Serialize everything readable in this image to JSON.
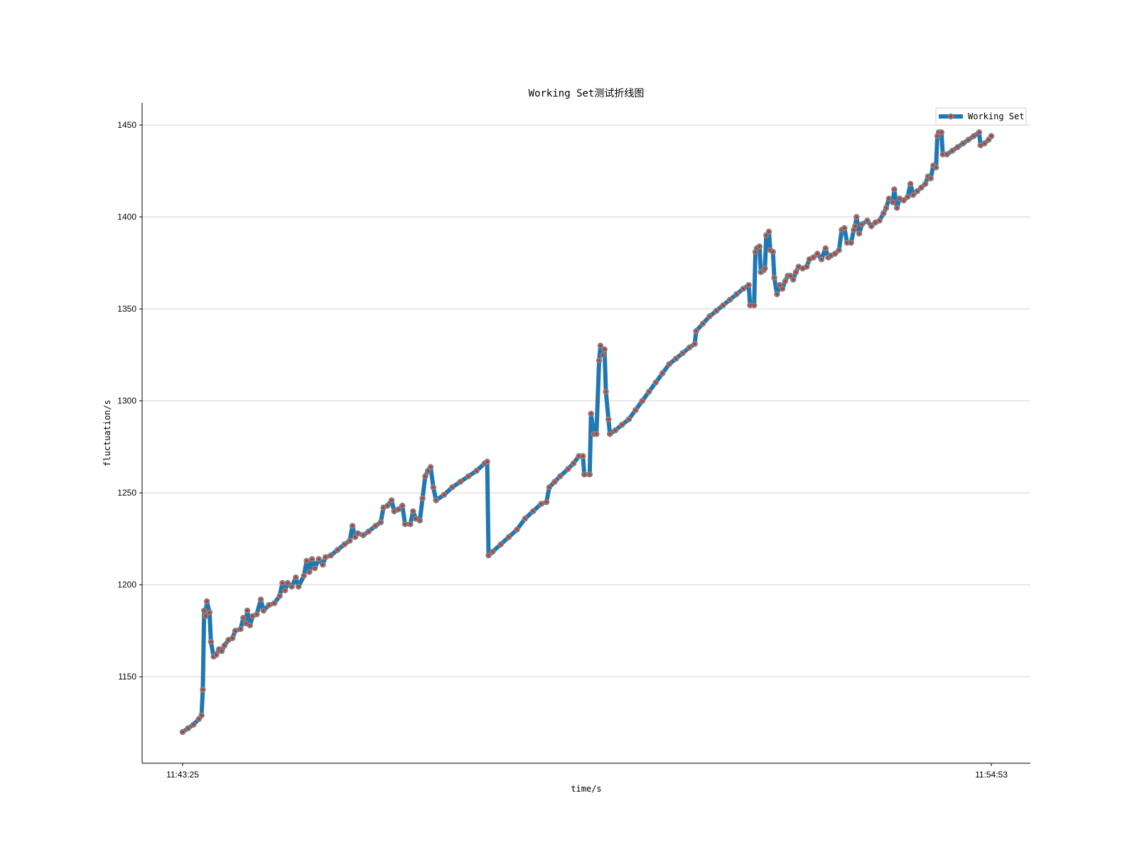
{
  "chart_data": {
    "type": "line",
    "title": "Working Set测试折线图",
    "xlabel": "time/s",
    "ylabel": "fluctuation/s",
    "x_start": "11:43:25",
    "x_end": "11:54:53",
    "x_tick_labels": [
      "11:43:25",
      "11:54:53"
    ],
    "y_ticks": [
      1150,
      1200,
      1250,
      1300,
      1350,
      1400,
      1450
    ],
    "ylim": [
      1103,
      1462
    ],
    "grid": "horizontal",
    "legend_position": "top-right",
    "colors": {
      "line": "#1f77b4",
      "marker_edge": "#808080",
      "marker_face": "#d62728"
    },
    "series": [
      {
        "name": "Working Set",
        "points": [
          [
            0,
            1120
          ],
          [
            4,
            1122
          ],
          [
            8,
            1124
          ],
          [
            12,
            1127
          ],
          [
            14,
            1129
          ],
          [
            15,
            1143
          ],
          [
            16,
            1186
          ],
          [
            17,
            1183
          ],
          [
            18,
            1191
          ],
          [
            20,
            1185
          ],
          [
            21,
            1169
          ],
          [
            23,
            1161
          ],
          [
            25,
            1162
          ],
          [
            27,
            1165
          ],
          [
            29,
            1164
          ],
          [
            31,
            1167
          ],
          [
            34,
            1170
          ],
          [
            37,
            1171
          ],
          [
            39,
            1175
          ],
          [
            43,
            1176
          ],
          [
            45,
            1182
          ],
          [
            47,
            1179
          ],
          [
            48,
            1186
          ],
          [
            50,
            1178
          ],
          [
            52,
            1183
          ],
          [
            55,
            1184
          ],
          [
            58,
            1192
          ],
          [
            60,
            1186
          ],
          [
            64,
            1189
          ],
          [
            68,
            1190
          ],
          [
            72,
            1194
          ],
          [
            74,
            1201
          ],
          [
            76,
            1197
          ],
          [
            78,
            1201
          ],
          [
            81,
            1199
          ],
          [
            84,
            1204
          ],
          [
            86,
            1199
          ],
          [
            90,
            1205
          ],
          [
            92,
            1213
          ],
          [
            94,
            1207
          ],
          [
            96,
            1214
          ],
          [
            98,
            1209
          ],
          [
            101,
            1214
          ],
          [
            104,
            1211
          ],
          [
            106,
            1215
          ],
          [
            110,
            1216
          ],
          [
            115,
            1219
          ],
          [
            120,
            1222
          ],
          [
            124,
            1224
          ],
          [
            126,
            1232
          ],
          [
            128,
            1226
          ],
          [
            130,
            1228
          ],
          [
            134,
            1227
          ],
          [
            138,
            1229
          ],
          [
            143,
            1232
          ],
          [
            147,
            1234
          ],
          [
            149,
            1242
          ],
          [
            152,
            1243
          ],
          [
            155,
            1246
          ],
          [
            157,
            1240
          ],
          [
            160,
            1241
          ],
          [
            163,
            1243
          ],
          [
            165,
            1233
          ],
          [
            169,
            1233
          ],
          [
            171,
            1240
          ],
          [
            173,
            1236
          ],
          [
            176,
            1235
          ],
          [
            178,
            1247
          ],
          [
            180,
            1259
          ],
          [
            182,
            1262
          ],
          [
            184,
            1264
          ],
          [
            186,
            1253
          ],
          [
            188,
            1246
          ],
          [
            194,
            1249
          ],
          [
            200,
            1253
          ],
          [
            206,
            1256
          ],
          [
            212,
            1259
          ],
          [
            218,
            1262
          ],
          [
            224,
            1266
          ],
          [
            226,
            1267
          ],
          [
            227,
            1216
          ],
          [
            230,
            1218
          ],
          [
            236,
            1222
          ],
          [
            242,
            1226
          ],
          [
            248,
            1230
          ],
          [
            254,
            1236
          ],
          [
            260,
            1240
          ],
          [
            266,
            1244
          ],
          [
            270,
            1245
          ],
          [
            272,
            1253
          ],
          [
            276,
            1256
          ],
          [
            280,
            1259
          ],
          [
            286,
            1263
          ],
          [
            290,
            1266
          ],
          [
            294,
            1270
          ],
          [
            297,
            1270
          ],
          [
            298,
            1260
          ],
          [
            302,
            1260
          ],
          [
            303,
            1293
          ],
          [
            305,
            1282
          ],
          [
            307,
            1282
          ],
          [
            309,
            1322
          ],
          [
            310,
            1330
          ],
          [
            312,
            1325
          ],
          [
            313,
            1328
          ],
          [
            314,
            1305
          ],
          [
            316,
            1290
          ],
          [
            317,
            1282
          ],
          [
            321,
            1284
          ],
          [
            326,
            1287
          ],
          [
            331,
            1290
          ],
          [
            336,
            1295
          ],
          [
            341,
            1300
          ],
          [
            346,
            1305
          ],
          [
            351,
            1310
          ],
          [
            356,
            1315
          ],
          [
            361,
            1320
          ],
          [
            366,
            1323
          ],
          [
            371,
            1326
          ],
          [
            376,
            1329
          ],
          [
            380,
            1331
          ],
          [
            381,
            1338
          ],
          [
            386,
            1342
          ],
          [
            391,
            1346
          ],
          [
            396,
            1349
          ],
          [
            401,
            1352
          ],
          [
            406,
            1355
          ],
          [
            411,
            1358
          ],
          [
            416,
            1361
          ],
          [
            420,
            1363
          ],
          [
            421,
            1352
          ],
          [
            424,
            1352
          ],
          [
            425,
            1381
          ],
          [
            426,
            1383
          ],
          [
            428,
            1384
          ],
          [
            429,
            1370
          ],
          [
            431,
            1371
          ],
          [
            432,
            1372
          ],
          [
            433,
            1390
          ],
          [
            435,
            1392
          ],
          [
            436,
            1382
          ],
          [
            438,
            1381
          ],
          [
            439,
            1367
          ],
          [
            441,
            1358
          ],
          [
            443,
            1363
          ],
          [
            445,
            1361
          ],
          [
            447,
            1365
          ],
          [
            449,
            1368
          ],
          [
            451,
            1368
          ],
          [
            453,
            1366
          ],
          [
            455,
            1370
          ],
          [
            457,
            1373
          ],
          [
            460,
            1372
          ],
          [
            463,
            1373
          ],
          [
            465,
            1377
          ],
          [
            468,
            1378
          ],
          [
            471,
            1380
          ],
          [
            474,
            1377
          ],
          [
            477,
            1383
          ],
          [
            479,
            1378
          ],
          [
            481,
            1379
          ],
          [
            484,
            1380
          ],
          [
            487,
            1382
          ],
          [
            489,
            1393
          ],
          [
            491,
            1394
          ],
          [
            493,
            1386
          ],
          [
            496,
            1386
          ],
          [
            498,
            1393
          ],
          [
            499,
            1395
          ],
          [
            500,
            1400
          ],
          [
            502,
            1391
          ],
          [
            504,
            1396
          ],
          [
            508,
            1398
          ],
          [
            511,
            1395
          ],
          [
            514,
            1397
          ],
          [
            517,
            1398
          ],
          [
            520,
            1402
          ],
          [
            522,
            1405
          ],
          [
            524,
            1410
          ],
          [
            527,
            1408
          ],
          [
            528,
            1415
          ],
          [
            530,
            1405
          ],
          [
            532,
            1410
          ],
          [
            535,
            1409
          ],
          [
            538,
            1411
          ],
          [
            540,
            1418
          ],
          [
            542,
            1412
          ],
          [
            545,
            1414
          ],
          [
            548,
            1416
          ],
          [
            551,
            1418
          ],
          [
            553,
            1422
          ],
          [
            555,
            1421
          ],
          [
            557,
            1428
          ],
          [
            559,
            1427
          ],
          [
            560,
            1444
          ],
          [
            561,
            1446
          ],
          [
            563,
            1446
          ],
          [
            564,
            1434
          ],
          [
            567,
            1434
          ],
          [
            571,
            1436
          ],
          [
            575,
            1438
          ],
          [
            579,
            1440
          ],
          [
            583,
            1442
          ],
          [
            587,
            1444
          ],
          [
            591,
            1446
          ],
          [
            592,
            1439
          ],
          [
            595,
            1440
          ],
          [
            598,
            1442
          ],
          [
            600,
            1444
          ]
        ]
      }
    ]
  }
}
